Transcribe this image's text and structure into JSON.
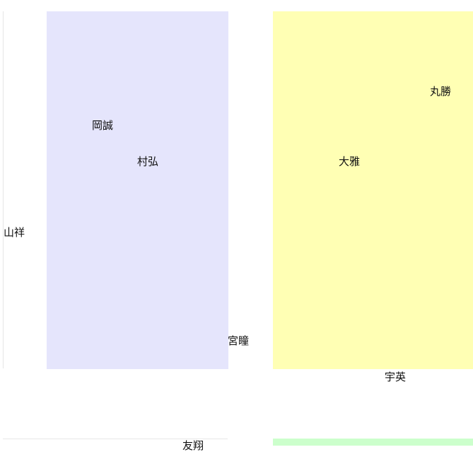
{
  "colors": {
    "lavender_region": "#e5e5fc",
    "yellow_region": "#ffffb4",
    "green_region": "#ccffcc",
    "rule_line": "#e6e6e6"
  },
  "labels": {
    "maru_masaru": "丸勝",
    "oka_makoto": "岡誠",
    "mura_hiro": "村弘",
    "oo_masa": "大雅",
    "yama_sho": "山祥",
    "miya_hitomi": "宮瞳",
    "u_ei": "宇英",
    "cut_label": "友翔"
  }
}
